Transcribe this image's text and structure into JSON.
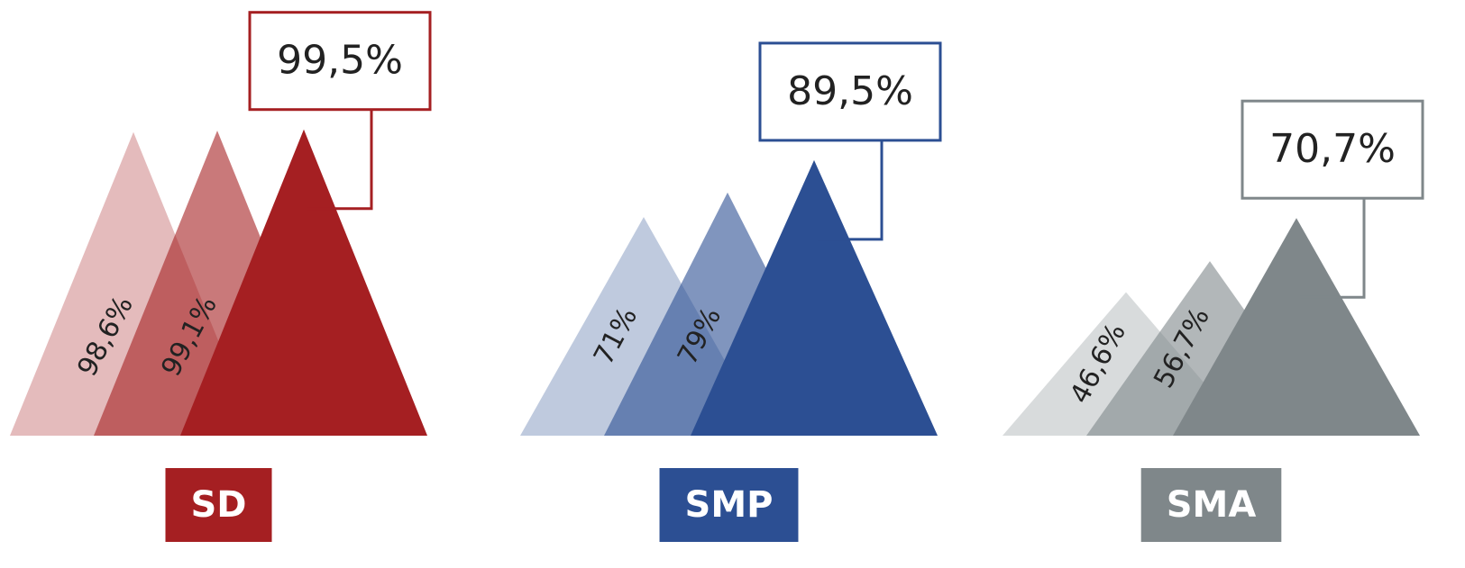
{
  "chart_data": {
    "type": "triangle",
    "groups": [
      {
        "name": "SD",
        "color": "#a51f22",
        "values": [
          98.6,
          99.1,
          99.5
        ],
        "value_labels": [
          "98,6%",
          "99,1%",
          "99,5%"
        ]
      },
      {
        "name": "SMP",
        "color": "#2c4f93",
        "values": [
          71,
          79,
          89.5
        ],
        "value_labels": [
          "71%",
          "79%",
          "89,5%"
        ]
      },
      {
        "name": "SMA",
        "color": "#7f878a",
        "values": [
          46.6,
          56.7,
          70.7
        ],
        "value_labels": [
          "46,6%",
          "56,7%",
          "70,7%"
        ]
      }
    ],
    "ylim": [
      0,
      100
    ]
  }
}
